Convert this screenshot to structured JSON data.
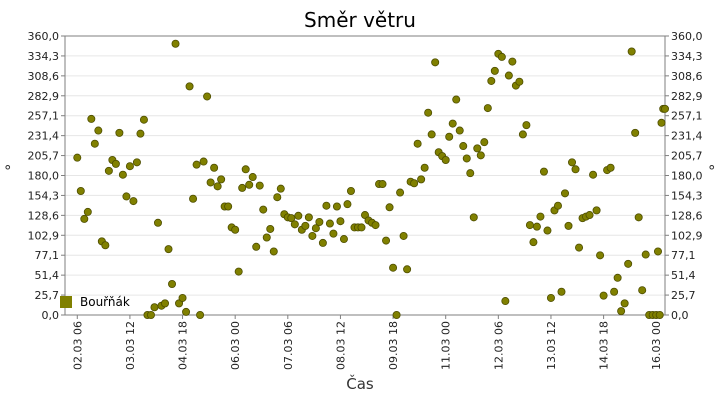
{
  "chart_data": {
    "type": "scatter",
    "title": "Směr větru",
    "xlabel": "Čas",
    "ylabel": "°",
    "ylim": [
      0,
      360
    ],
    "yticks": [
      "0,0",
      "25,7",
      "51,4",
      "77,1",
      "102,9",
      "128,6",
      "154,3",
      "180,0",
      "205,7",
      "231,4",
      "257,1",
      "282,9",
      "308,6",
      "334,3",
      "360,0"
    ],
    "xlim": [
      "2017-03-01T23:00",
      "2017-03-16T05:00"
    ],
    "xticks": [
      {
        "t": "2017-03-02T06:00",
        "label": "02.03 06"
      },
      {
        "t": "2017-03-03T12:00",
        "label": "03.03 12"
      },
      {
        "t": "2017-03-04T18:00",
        "label": "04.03 18"
      },
      {
        "t": "2017-03-06T00:00",
        "label": "06.03 00"
      },
      {
        "t": "2017-03-07T06:00",
        "label": "07.03 06"
      },
      {
        "t": "2017-03-08T12:00",
        "label": "08.03 12"
      },
      {
        "t": "2017-03-09T18:00",
        "label": "09.03 18"
      },
      {
        "t": "2017-03-11T00:00",
        "label": "11.03 00"
      },
      {
        "t": "2017-03-12T06:00",
        "label": "12.03 06"
      },
      {
        "t": "2017-03-13T12:00",
        "label": "13.03 12"
      },
      {
        "t": "2017-03-14T18:00",
        "label": "14.03 18"
      },
      {
        "t": "2017-03-16T00:00",
        "label": "16.03 00"
      }
    ],
    "grid": {
      "horizontal": true,
      "vertical": false
    },
    "legend_position": "bottom-left",
    "series": [
      {
        "name": "Bouřňák",
        "color": "#808000",
        "points": [
          [
            "2017-03-02T06:00",
            203
          ],
          [
            "2017-03-02T08:00",
            160
          ],
          [
            "2017-03-02T10:00",
            124
          ],
          [
            "2017-03-02T12:00",
            133
          ],
          [
            "2017-03-02T14:00",
            253
          ],
          [
            "2017-03-02T16:00",
            221
          ],
          [
            "2017-03-02T18:00",
            238
          ],
          [
            "2017-03-02T20:00",
            95
          ],
          [
            "2017-03-02T22:00",
            90
          ],
          [
            "2017-03-03T00:00",
            186
          ],
          [
            "2017-03-03T02:00",
            200
          ],
          [
            "2017-03-03T04:00",
            195
          ],
          [
            "2017-03-03T06:00",
            235
          ],
          [
            "2017-03-03T08:00",
            181
          ],
          [
            "2017-03-03T10:00",
            153
          ],
          [
            "2017-03-03T12:00",
            192
          ],
          [
            "2017-03-03T14:00",
            147
          ],
          [
            "2017-03-03T16:00",
            197
          ],
          [
            "2017-03-03T18:00",
            234
          ],
          [
            "2017-03-03T20:00",
            252
          ],
          [
            "2017-03-03T22:00",
            0
          ],
          [
            "2017-03-04T00:00",
            0
          ],
          [
            "2017-03-04T02:00",
            10
          ],
          [
            "2017-03-04T04:00",
            119
          ],
          [
            "2017-03-04T06:00",
            12
          ],
          [
            "2017-03-04T08:00",
            15
          ],
          [
            "2017-03-04T10:00",
            85
          ],
          [
            "2017-03-04T12:00",
            40
          ],
          [
            "2017-03-04T14:00",
            350
          ],
          [
            "2017-03-04T16:00",
            15
          ],
          [
            "2017-03-04T18:00",
            22
          ],
          [
            "2017-03-04T20:00",
            4
          ],
          [
            "2017-03-04T22:00",
            295
          ],
          [
            "2017-03-05T00:00",
            150
          ],
          [
            "2017-03-05T02:00",
            194
          ],
          [
            "2017-03-05T04:00",
            0
          ],
          [
            "2017-03-05T06:00",
            198
          ],
          [
            "2017-03-05T08:00",
            282
          ],
          [
            "2017-03-05T10:00",
            171
          ],
          [
            "2017-03-05T12:00",
            190
          ],
          [
            "2017-03-05T14:00",
            166
          ],
          [
            "2017-03-05T16:00",
            175
          ],
          [
            "2017-03-05T18:00",
            140
          ],
          [
            "2017-03-05T20:00",
            140
          ],
          [
            "2017-03-05T22:00",
            113
          ],
          [
            "2017-03-06T00:00",
            110
          ],
          [
            "2017-03-06T02:00",
            56
          ],
          [
            "2017-03-06T04:00",
            164
          ],
          [
            "2017-03-06T06:00",
            188
          ],
          [
            "2017-03-06T08:00",
            168
          ],
          [
            "2017-03-06T10:00",
            178
          ],
          [
            "2017-03-06T12:00",
            88
          ],
          [
            "2017-03-06T14:00",
            167
          ],
          [
            "2017-03-06T16:00",
            136
          ],
          [
            "2017-03-06T18:00",
            100
          ],
          [
            "2017-03-06T20:00",
            111
          ],
          [
            "2017-03-06T22:00",
            82
          ],
          [
            "2017-03-07T00:00",
            152
          ],
          [
            "2017-03-07T02:00",
            163
          ],
          [
            "2017-03-07T04:00",
            130
          ],
          [
            "2017-03-07T06:00",
            126
          ],
          [
            "2017-03-07T08:00",
            125
          ],
          [
            "2017-03-07T10:00",
            117
          ],
          [
            "2017-03-07T12:00",
            128
          ],
          [
            "2017-03-07T14:00",
            110
          ],
          [
            "2017-03-07T16:00",
            115
          ],
          [
            "2017-03-07T18:00",
            126
          ],
          [
            "2017-03-07T20:00",
            102
          ],
          [
            "2017-03-07T22:00",
            112
          ],
          [
            "2017-03-08T00:00",
            120
          ],
          [
            "2017-03-08T02:00",
            93
          ],
          [
            "2017-03-08T04:00",
            141
          ],
          [
            "2017-03-08T06:00",
            118
          ],
          [
            "2017-03-08T08:00",
            105
          ],
          [
            "2017-03-08T10:00",
            140
          ],
          [
            "2017-03-08T12:00",
            121
          ],
          [
            "2017-03-08T14:00",
            98
          ],
          [
            "2017-03-08T16:00",
            143
          ],
          [
            "2017-03-08T18:00",
            160
          ],
          [
            "2017-03-08T20:00",
            113
          ],
          [
            "2017-03-08T22:00",
            113
          ],
          [
            "2017-03-09T00:00",
            113
          ],
          [
            "2017-03-09T02:00",
            129
          ],
          [
            "2017-03-09T04:00",
            122
          ],
          [
            "2017-03-09T06:00",
            119
          ],
          [
            "2017-03-09T08:00",
            116
          ],
          [
            "2017-03-09T10:00",
            169
          ],
          [
            "2017-03-09T12:00",
            169
          ],
          [
            "2017-03-09T14:00",
            96
          ],
          [
            "2017-03-09T16:00",
            139
          ],
          [
            "2017-03-09T18:00",
            61
          ],
          [
            "2017-03-09T20:00",
            0
          ],
          [
            "2017-03-09T22:00",
            158
          ],
          [
            "2017-03-10T00:00",
            102
          ],
          [
            "2017-03-10T02:00",
            59
          ],
          [
            "2017-03-10T04:00",
            172
          ],
          [
            "2017-03-10T06:00",
            170
          ],
          [
            "2017-03-10T08:00",
            221
          ],
          [
            "2017-03-10T10:00",
            175
          ],
          [
            "2017-03-10T12:00",
            190
          ],
          [
            "2017-03-10T14:00",
            261
          ],
          [
            "2017-03-10T16:00",
            233
          ],
          [
            "2017-03-10T18:00",
            326
          ],
          [
            "2017-03-10T20:00",
            210
          ],
          [
            "2017-03-10T22:00",
            205
          ],
          [
            "2017-03-11T00:00",
            200
          ],
          [
            "2017-03-11T02:00",
            230
          ],
          [
            "2017-03-11T04:00",
            247
          ],
          [
            "2017-03-11T06:00",
            278
          ],
          [
            "2017-03-11T08:00",
            238
          ],
          [
            "2017-03-11T10:00",
            218
          ],
          [
            "2017-03-11T12:00",
            202
          ],
          [
            "2017-03-11T14:00",
            183
          ],
          [
            "2017-03-11T16:00",
            126
          ],
          [
            "2017-03-11T18:00",
            215
          ],
          [
            "2017-03-11T20:00",
            206
          ],
          [
            "2017-03-11T22:00",
            223
          ],
          [
            "2017-03-12T00:00",
            267
          ],
          [
            "2017-03-12T02:00",
            302
          ],
          [
            "2017-03-12T04:00",
            315
          ],
          [
            "2017-03-12T06:00",
            337
          ],
          [
            "2017-03-12T08:00",
            333
          ],
          [
            "2017-03-12T10:00",
            18
          ],
          [
            "2017-03-12T12:00",
            309
          ],
          [
            "2017-03-12T14:00",
            327
          ],
          [
            "2017-03-12T16:00",
            296
          ],
          [
            "2017-03-12T18:00",
            301
          ],
          [
            "2017-03-12T20:00",
            233
          ],
          [
            "2017-03-12T22:00",
            245
          ],
          [
            "2017-03-13T00:00",
            116
          ],
          [
            "2017-03-13T02:00",
            94
          ],
          [
            "2017-03-13T04:00",
            114
          ],
          [
            "2017-03-13T06:00",
            127
          ],
          [
            "2017-03-13T08:00",
            185
          ],
          [
            "2017-03-13T10:00",
            109
          ],
          [
            "2017-03-13T12:00",
            22
          ],
          [
            "2017-03-13T14:00",
            135
          ],
          [
            "2017-03-13T16:00",
            141
          ],
          [
            "2017-03-13T18:00",
            30
          ],
          [
            "2017-03-13T20:00",
            157
          ],
          [
            "2017-03-13T22:00",
            115
          ],
          [
            "2017-03-14T00:00",
            197
          ],
          [
            "2017-03-14T02:00",
            188
          ],
          [
            "2017-03-14T04:00",
            87
          ],
          [
            "2017-03-14T06:00",
            125
          ],
          [
            "2017-03-14T08:00",
            127
          ],
          [
            "2017-03-14T10:00",
            129
          ],
          [
            "2017-03-14T12:00",
            181
          ],
          [
            "2017-03-14T14:00",
            135
          ],
          [
            "2017-03-14T16:00",
            77
          ],
          [
            "2017-03-14T18:00",
            25
          ],
          [
            "2017-03-14T20:00",
            187
          ],
          [
            "2017-03-14T22:00",
            190
          ],
          [
            "2017-03-15T00:00",
            30
          ],
          [
            "2017-03-15T02:00",
            48
          ],
          [
            "2017-03-15T04:00",
            5
          ],
          [
            "2017-03-15T06:00",
            15
          ],
          [
            "2017-03-15T08:00",
            66
          ],
          [
            "2017-03-15T10:00",
            340
          ],
          [
            "2017-03-15T12:00",
            235
          ],
          [
            "2017-03-15T14:00",
            126
          ],
          [
            "2017-03-15T16:00",
            32
          ],
          [
            "2017-03-15T18:00",
            78
          ],
          [
            "2017-03-15T20:00",
            0
          ],
          [
            "2017-03-15T22:00",
            0
          ],
          [
            "2017-03-16T00:00",
            0
          ],
          [
            "2017-03-16T01:00",
            82
          ],
          [
            "2017-03-16T02:00",
            0
          ],
          [
            "2017-03-16T03:00",
            248
          ],
          [
            "2017-03-16T04:00",
            266
          ],
          [
            "2017-03-16T05:00",
            266
          ]
        ]
      }
    ]
  }
}
